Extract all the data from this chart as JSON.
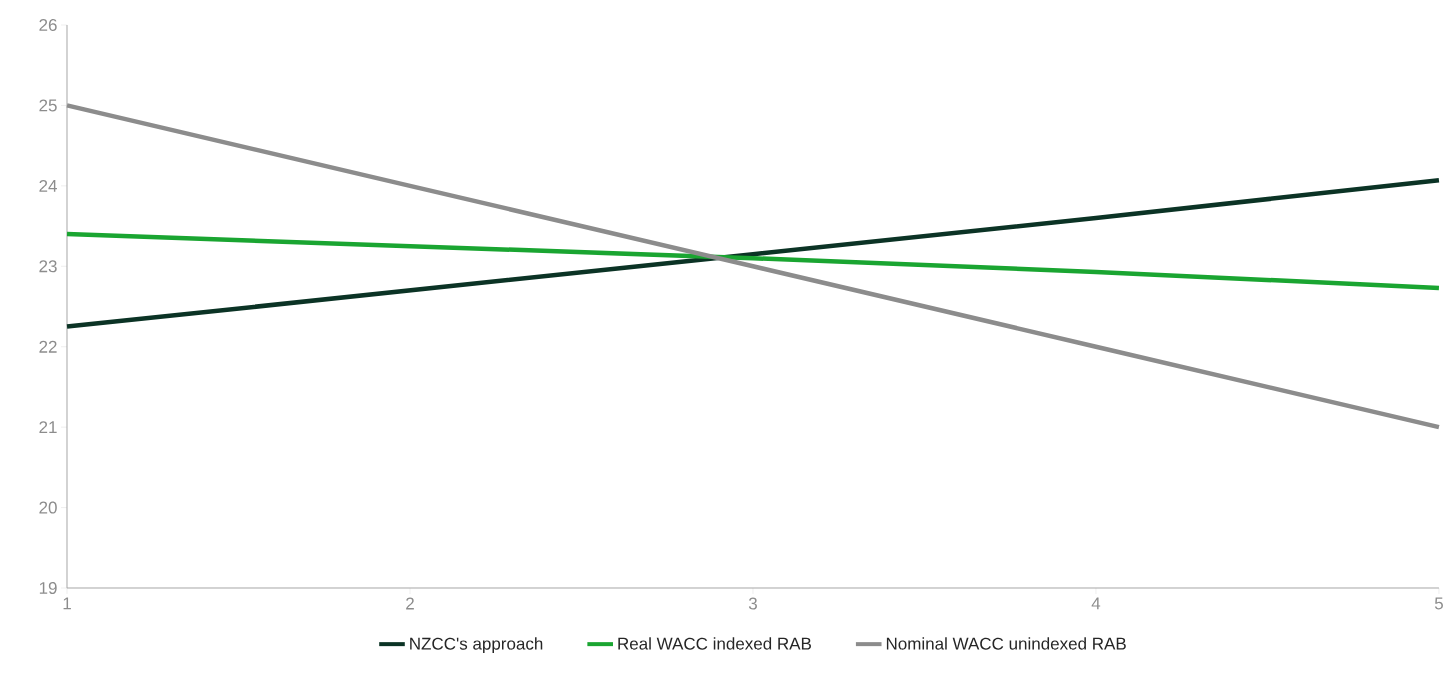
{
  "chart_data": {
    "type": "line",
    "x": [
      1,
      2,
      3,
      4,
      5
    ],
    "series": [
      {
        "name": "NZCC's approach",
        "color": "#0b3325",
        "values": [
          22.25,
          22.7,
          23.15,
          23.6,
          24.07
        ]
      },
      {
        "name": "Real WACC indexed RAB",
        "color": "#1aa531",
        "values": [
          23.4,
          23.25,
          23.1,
          22.93,
          22.73
        ]
      },
      {
        "name": "Nominal WACC unindexed RAB",
        "color": "#8c8c8c",
        "values": [
          25,
          24,
          23,
          22,
          21
        ]
      }
    ],
    "xlim": [
      1,
      5
    ],
    "xticks": [
      1,
      2,
      3,
      4,
      5
    ],
    "ylim": [
      19,
      26
    ],
    "yticks": [
      19,
      20,
      21,
      22,
      23,
      24,
      25,
      26
    ],
    "grid": false,
    "legend": "bottom",
    "marker": "none",
    "line_style": "solid"
  }
}
